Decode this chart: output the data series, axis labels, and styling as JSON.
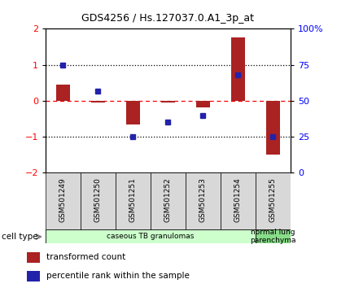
{
  "title": "GDS4256 / Hs.127037.0.A1_3p_at",
  "samples": [
    "GSM501249",
    "GSM501250",
    "GSM501251",
    "GSM501252",
    "GSM501253",
    "GSM501254",
    "GSM501255"
  ],
  "transformed_count": [
    0.45,
    -0.05,
    -0.65,
    -0.05,
    -0.18,
    1.75,
    -1.5
  ],
  "percentile_rank_pct": [
    75,
    57,
    25,
    35,
    40,
    68,
    25
  ],
  "bar_color": "#aa2222",
  "dot_color": "#2222aa",
  "ylim": [
    -2,
    2
  ],
  "y2lim": [
    0,
    100
  ],
  "yticks": [
    -2,
    -1,
    0,
    1,
    2
  ],
  "y2ticks": [
    0,
    25,
    50,
    75,
    100
  ],
  "hlines_dotted": [
    -1,
    1
  ],
  "hline_dashed": 0,
  "cell_type_groups": [
    {
      "label": "caseous TB granulomas",
      "start": 0,
      "end": 5,
      "color": "#ccffcc"
    },
    {
      "label": "normal lung\nparenchyma",
      "start": 6,
      "end": 6,
      "color": "#88dd88"
    }
  ],
  "legend_items": [
    {
      "color": "#aa2222",
      "label": "transformed count"
    },
    {
      "color": "#2222aa",
      "label": "percentile rank within the sample"
    }
  ],
  "cell_type_label": "cell type",
  "sample_box_color": "#d8d8d8",
  "bar_width": 0.4
}
